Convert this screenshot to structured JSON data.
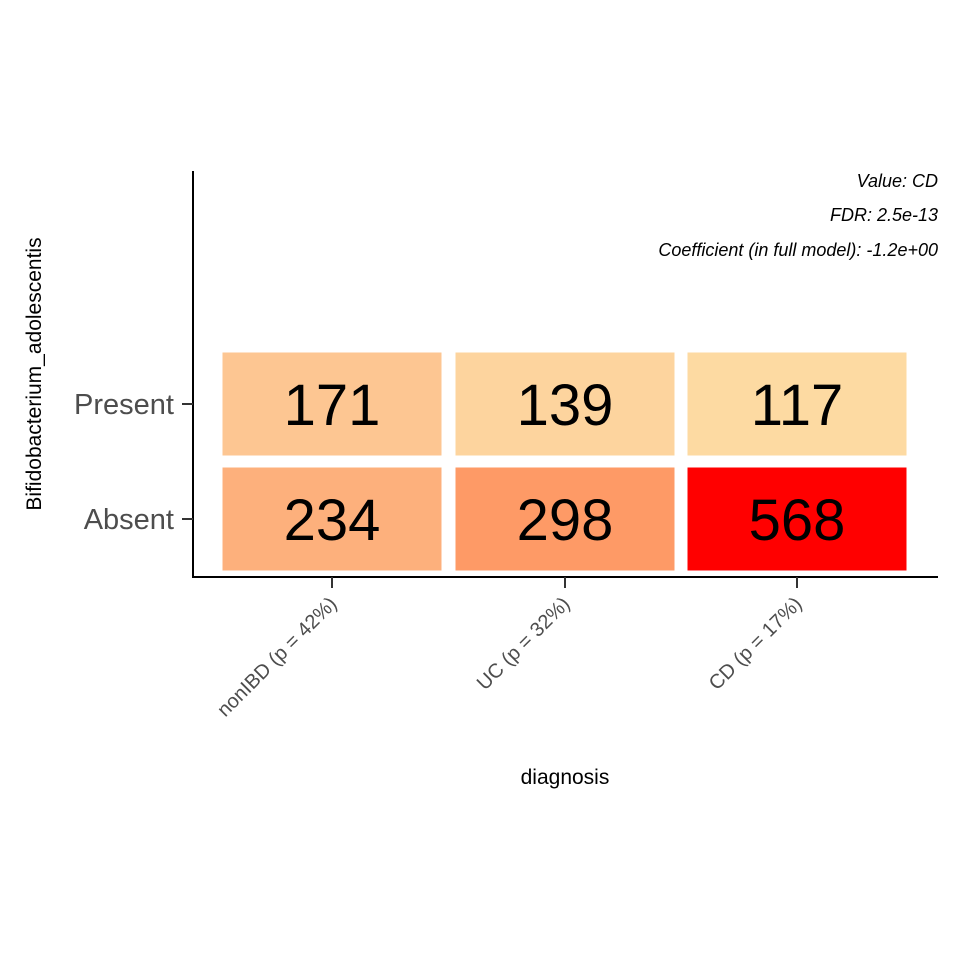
{
  "chart_data": {
    "type": "heatmap",
    "xlabel": "diagnosis",
    "ylabel": "Bifidobacterium_adolescentis",
    "x_categories": [
      "nonIBD (p = 42%)",
      "UC (p = 32%)",
      "CD (p = 17%)"
    ],
    "y_categories": [
      "Present",
      "Absent"
    ],
    "values": [
      [
        171,
        139,
        117
      ],
      [
        234,
        298,
        568
      ]
    ],
    "colors": [
      [
        "#fdc692",
        "#fdd49e",
        "#fddaa2"
      ],
      [
        "#fdb07c",
        "#fe9a66",
        "#ff0000"
      ]
    ],
    "annotations": [
      "Value: CD",
      "FDR: 2.5e-13",
      "Coefficient (in full model): -1.2e+00"
    ],
    "grid": false,
    "legend": "none"
  }
}
